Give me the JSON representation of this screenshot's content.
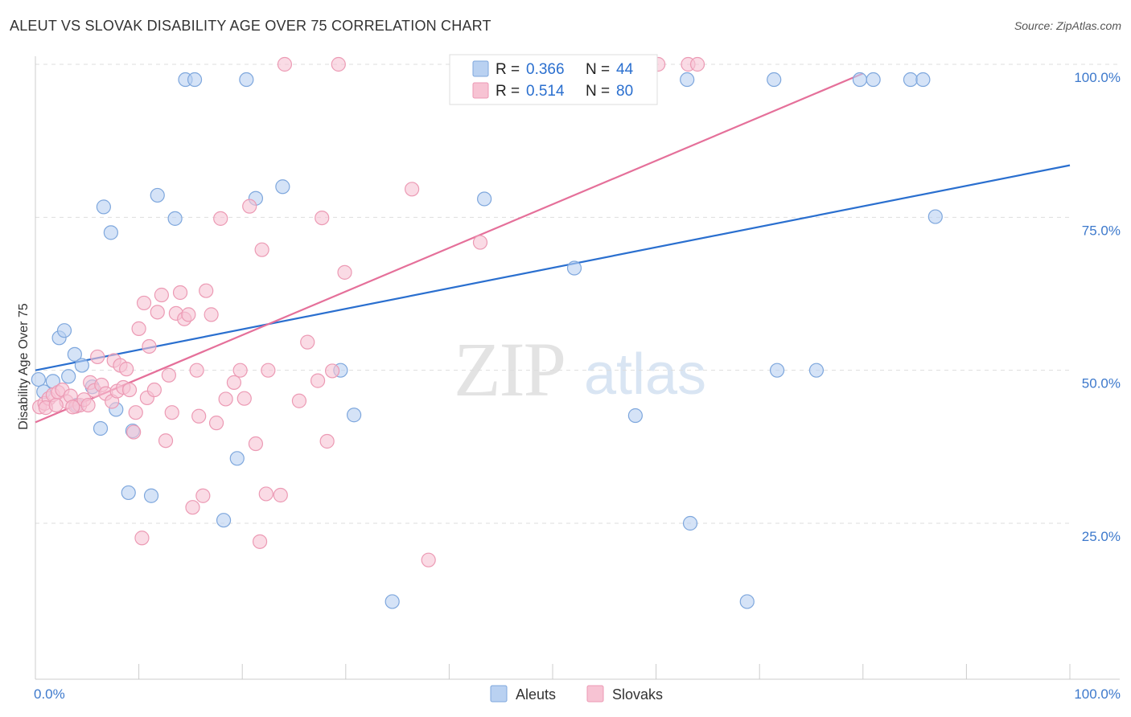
{
  "header": {
    "title": "ALEUT VS SLOVAK DISABILITY AGE OVER 75 CORRELATION CHART",
    "source": "Source: ZipAtlas.com"
  },
  "watermark": {
    "zip": "ZIP",
    "atlas": "atlas"
  },
  "legend_box": {
    "rows": [
      {
        "r_label": "R = ",
        "r_value": "0.366",
        "n_label": "N = ",
        "n_value": "44"
      },
      {
        "r_label": "R = ",
        "r_value": "0.514",
        "n_label": "N = ",
        "n_value": "80"
      }
    ]
  },
  "bottom_legend": {
    "items": [
      "Aleuts",
      "Slovaks"
    ]
  },
  "colors": {
    "aleut_fill": "#b9d1f1",
    "aleut_stroke": "#7ea7dd",
    "aleut_line": "#2a6fcf",
    "slovak_fill": "#f7c3d3",
    "slovak_stroke": "#ec9ab4",
    "slovak_line": "#e5709a",
    "tick_text": "#3d79cc",
    "grid": "#dddddd"
  },
  "chart_data": {
    "type": "scatter",
    "title": "ALEUT VS SLOVAK DISABILITY AGE OVER 75 CORRELATION CHART",
    "xlabel": "",
    "ylabel": "Disability Age Over 75",
    "xlim": [
      0,
      100
    ],
    "ylim": [
      0,
      105
    ],
    "x_tick_labels": [
      "0.0%",
      "100.0%"
    ],
    "y_ticks": [
      25,
      50,
      75,
      100
    ],
    "y_tick_labels": [
      "25.0%",
      "50.0%",
      "75.0%",
      "100.0%"
    ],
    "grid": "horizontal dashed",
    "legend_position": "bottom-center",
    "series": [
      {
        "name": "Aleuts",
        "r": 0.366,
        "n": 44,
        "trend": {
          "x": [
            0,
            100
          ],
          "y": [
            50.0,
            83.5
          ]
        },
        "points": [
          [
            0.3,
            48.5
          ],
          [
            0.8,
            46.5
          ],
          [
            1.7,
            48.2
          ],
          [
            2.3,
            55.3
          ],
          [
            2.8,
            56.5
          ],
          [
            3.8,
            52.6
          ],
          [
            4.5,
            50.8
          ],
          [
            5.5,
            47.3
          ],
          [
            6.3,
            40.5
          ],
          [
            6.6,
            76.7
          ],
          [
            7.3,
            72.5
          ],
          [
            7.8,
            43.6
          ],
          [
            9.0,
            30.0
          ],
          [
            9.4,
            40.1
          ],
          [
            11.2,
            29.5
          ],
          [
            11.8,
            78.6
          ],
          [
            13.5,
            74.8
          ],
          [
            14.5,
            97.5
          ],
          [
            15.4,
            97.5
          ],
          [
            18.2,
            25.5
          ],
          [
            19.5,
            35.6
          ],
          [
            20.4,
            97.5
          ],
          [
            21.3,
            78.1
          ],
          [
            23.9,
            80.0
          ],
          [
            29.5,
            50.0
          ],
          [
            30.8,
            42.7
          ],
          [
            34.5,
            12.2
          ],
          [
            43.4,
            78.0
          ],
          [
            47.2,
            97.5
          ],
          [
            52.1,
            66.7
          ],
          [
            58.0,
            42.6
          ],
          [
            63.0,
            97.5
          ],
          [
            63.3,
            25.0
          ],
          [
            68.8,
            12.2
          ],
          [
            71.4,
            97.5
          ],
          [
            71.7,
            50.0
          ],
          [
            75.5,
            50.0
          ],
          [
            79.7,
            97.5
          ],
          [
            81.0,
            97.5
          ],
          [
            84.6,
            97.5
          ],
          [
            85.8,
            97.5
          ],
          [
            87.0,
            75.1
          ],
          [
            4.0,
            44.3
          ],
          [
            3.2,
            49.0
          ]
        ]
      },
      {
        "name": "Slovaks",
        "r": 0.514,
        "n": 80,
        "trend": {
          "x": [
            0,
            80.0
          ],
          "y": [
            41.5,
            98.5
          ]
        },
        "points": [
          [
            0.4,
            44.0
          ],
          [
            0.9,
            44.6
          ],
          [
            1.3,
            45.4
          ],
          [
            1.7,
            46.0
          ],
          [
            2.2,
            46.4
          ],
          [
            2.6,
            46.8
          ],
          [
            3.0,
            44.9
          ],
          [
            3.4,
            45.8
          ],
          [
            3.9,
            44.1
          ],
          [
            4.3,
            44.3
          ],
          [
            4.7,
            45.2
          ],
          [
            5.1,
            44.3
          ],
          [
            5.3,
            48.0
          ],
          [
            5.7,
            46.7
          ],
          [
            6.0,
            52.2
          ],
          [
            6.4,
            47.6
          ],
          [
            6.8,
            46.2
          ],
          [
            7.4,
            44.9
          ],
          [
            7.6,
            51.6
          ],
          [
            7.9,
            46.6
          ],
          [
            8.2,
            50.8
          ],
          [
            8.5,
            47.2
          ],
          [
            8.8,
            50.2
          ],
          [
            9.1,
            46.8
          ],
          [
            9.5,
            39.9
          ],
          [
            9.7,
            43.1
          ],
          [
            10.0,
            56.8
          ],
          [
            10.3,
            22.6
          ],
          [
            10.5,
            61.0
          ],
          [
            10.8,
            45.5
          ],
          [
            11.0,
            53.9
          ],
          [
            11.5,
            46.8
          ],
          [
            11.8,
            59.5
          ],
          [
            12.2,
            62.3
          ],
          [
            12.6,
            38.5
          ],
          [
            12.9,
            49.2
          ],
          [
            13.2,
            43.1
          ],
          [
            13.6,
            59.3
          ],
          [
            14.0,
            62.7
          ],
          [
            14.4,
            58.4
          ],
          [
            14.8,
            59.1
          ],
          [
            15.2,
            27.6
          ],
          [
            15.6,
            50.0
          ],
          [
            15.8,
            42.5
          ],
          [
            16.2,
            29.5
          ],
          [
            16.5,
            63.0
          ],
          [
            17.0,
            59.1
          ],
          [
            17.5,
            41.4
          ],
          [
            17.9,
            74.8
          ],
          [
            18.4,
            45.3
          ],
          [
            19.2,
            48.0
          ],
          [
            19.8,
            50.0
          ],
          [
            20.2,
            45.4
          ],
          [
            20.7,
            76.8
          ],
          [
            21.3,
            38.0
          ],
          [
            21.7,
            22.0
          ],
          [
            21.9,
            69.7
          ],
          [
            22.3,
            29.8
          ],
          [
            22.5,
            50.0
          ],
          [
            23.7,
            29.6
          ],
          [
            24.1,
            100.0
          ],
          [
            25.5,
            45.0
          ],
          [
            26.3,
            54.6
          ],
          [
            27.3,
            48.3
          ],
          [
            27.7,
            74.9
          ],
          [
            28.2,
            38.4
          ],
          [
            28.7,
            49.9
          ],
          [
            29.3,
            100.0
          ],
          [
            29.9,
            66.0
          ],
          [
            36.4,
            79.6
          ],
          [
            38.0,
            19.0
          ],
          [
            43.0,
            70.9
          ],
          [
            47.3,
            100.0
          ],
          [
            50.5,
            100.0
          ],
          [
            60.2,
            100.0
          ],
          [
            63.1,
            100.0
          ],
          [
            64.0,
            100.0
          ],
          [
            1.0,
            43.9
          ],
          [
            2.0,
            44.3
          ],
          [
            3.6,
            44.0
          ]
        ]
      }
    ]
  }
}
